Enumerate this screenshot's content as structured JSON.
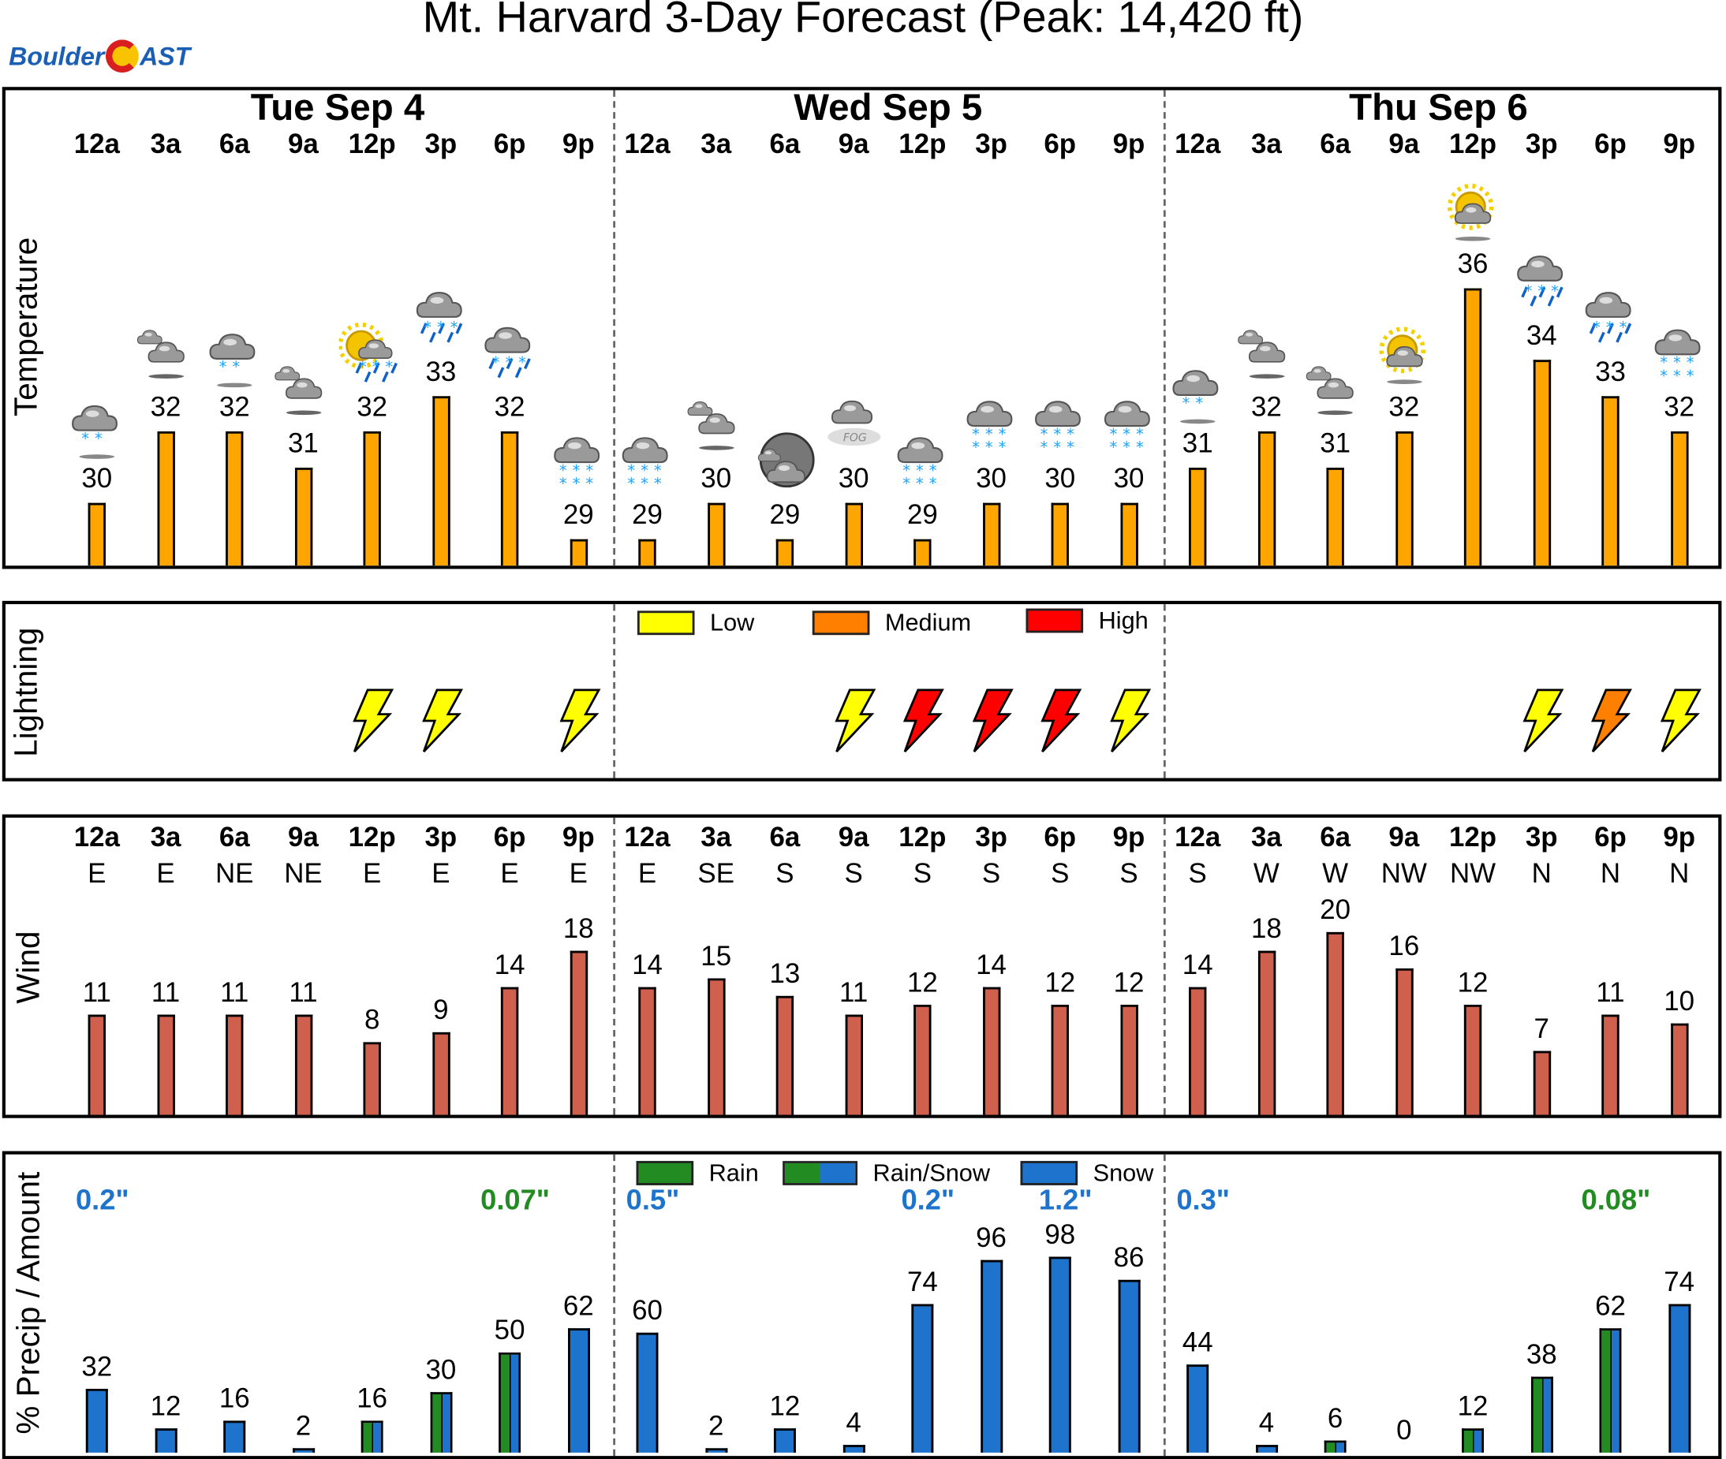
{
  "title": "Mt. Harvard 3-Day Forecast (Peak: 14,420 ft)",
  "logo_text": "BoulderCAST",
  "days": [
    "Tue  Sep  4",
    "Wed  Sep  5",
    "Thu  Sep  6"
  ],
  "hours": [
    "12a",
    "3a",
    "6a",
    "9a",
    "12p",
    "3p",
    "6p",
    "9p",
    "12a",
    "3a",
    "6a",
    "9a",
    "12p",
    "3p",
    "6p",
    "9p",
    "12a",
    "3a",
    "6a",
    "9a",
    "12p",
    "3p",
    "6p",
    "9p"
  ],
  "colors": {
    "temp_bar": "#FFA500",
    "wind_bar": "#CF604D",
    "snow": "#1E74CC",
    "rain": "#228B22",
    "light_low": "#FFFF00",
    "light_med": "#FF7F00",
    "light_high": "#FF0000"
  },
  "labels": {
    "temperature": "Temperature",
    "lightning": "Lightning",
    "wind": "Wind",
    "precip": "% Precip / Amount"
  },
  "lightning_legend": [
    "Low",
    "Medium",
    "High"
  ],
  "precip_legend": [
    "Rain",
    "Rain/Snow",
    "Snow"
  ],
  "chart_data": [
    {
      "type": "bar",
      "title": "Temperature",
      "ylabel": "Temperature",
      "categories": [
        "Tue 12a",
        "Tue 3a",
        "Tue 6a",
        "Tue 9a",
        "Tue 12p",
        "Tue 3p",
        "Tue 6p",
        "Tue 9p",
        "Wed 12a",
        "Wed 3a",
        "Wed 6a",
        "Wed 9a",
        "Wed 12p",
        "Wed 3p",
        "Wed 6p",
        "Wed 9p",
        "Thu 12a",
        "Thu 3a",
        "Thu 6a",
        "Thu 9a",
        "Thu 12p",
        "Thu 3p",
        "Thu 6p",
        "Thu 9p"
      ],
      "values": [
        30,
        32,
        32,
        31,
        32,
        33,
        32,
        29,
        29,
        30,
        29,
        30,
        29,
        30,
        30,
        30,
        31,
        32,
        31,
        32,
        36,
        34,
        33,
        32
      ],
      "icons": [
        "light-snow-icon",
        "cloudy-icon",
        "light-snow-icon",
        "cloudy-icon",
        "sun-mix-icon",
        "mix-icon",
        "mix-icon",
        "snow-icon",
        "snow-icon",
        "cloudy-icon",
        "night-cloudy-icon",
        "fog-icon",
        "snow-icon",
        "snow-icon",
        "snow-icon",
        "snow-icon",
        "light-snow-icon",
        "cloudy-icon",
        "cloudy-icon",
        "partly-sunny-icon",
        "partly-sunny-icon",
        "mix-icon",
        "mix-icon",
        "snow-icon"
      ]
    },
    {
      "type": "bar",
      "title": "Lightning",
      "ylabel": "Lightning",
      "levels": [
        "none",
        "none",
        "none",
        "none",
        "low",
        "low",
        "none",
        "low",
        "none",
        "none",
        "none",
        "low",
        "high",
        "high",
        "high",
        "low",
        "none",
        "none",
        "none",
        "none",
        "none",
        "low",
        "medium",
        "low"
      ]
    },
    {
      "type": "bar",
      "title": "Wind",
      "ylabel": "Wind",
      "directions": [
        "E",
        "E",
        "NE",
        "NE",
        "E",
        "E",
        "E",
        "E",
        "E",
        "SE",
        "S",
        "S",
        "S",
        "S",
        "S",
        "S",
        "S",
        "W",
        "W",
        "NW",
        "NW",
        "N",
        "N",
        "N"
      ],
      "values": [
        11,
        11,
        11,
        11,
        8,
        9,
        14,
        18,
        14,
        15,
        13,
        11,
        12,
        14,
        12,
        12,
        14,
        18,
        20,
        16,
        12,
        7,
        11,
        10
      ]
    },
    {
      "type": "bar",
      "title": "% Precip / Amount",
      "ylabel": "% Precip / Amount",
      "values": [
        32,
        12,
        16,
        2,
        16,
        30,
        50,
        62,
        60,
        2,
        12,
        4,
        74,
        96,
        98,
        86,
        44,
        4,
        6,
        0,
        12,
        38,
        62,
        74
      ],
      "kinds": [
        "snow",
        "snow",
        "snow",
        "snow",
        "mix",
        "mix",
        "mix",
        "snow",
        "snow",
        "snow",
        "snow",
        "snow",
        "snow",
        "snow",
        "snow",
        "snow",
        "snow",
        "snow",
        "mix",
        "snow",
        "mix",
        "mix",
        "mix",
        "snow"
      ],
      "amounts": [
        {
          "text": "0.2\"",
          "kind": "snow",
          "col": 0
        },
        {
          "text": "0.07\"",
          "kind": "rain",
          "col": 6
        },
        {
          "text": "0.5\"",
          "kind": "snow",
          "col": 8
        },
        {
          "text": "0.2\"",
          "kind": "snow",
          "col": 12
        },
        {
          "text": "1.2\"",
          "kind": "snow",
          "col": 14
        },
        {
          "text": "0.3\"",
          "kind": "snow",
          "col": 16
        },
        {
          "text": "0.08\"",
          "kind": "rain",
          "col": 22
        }
      ]
    }
  ]
}
